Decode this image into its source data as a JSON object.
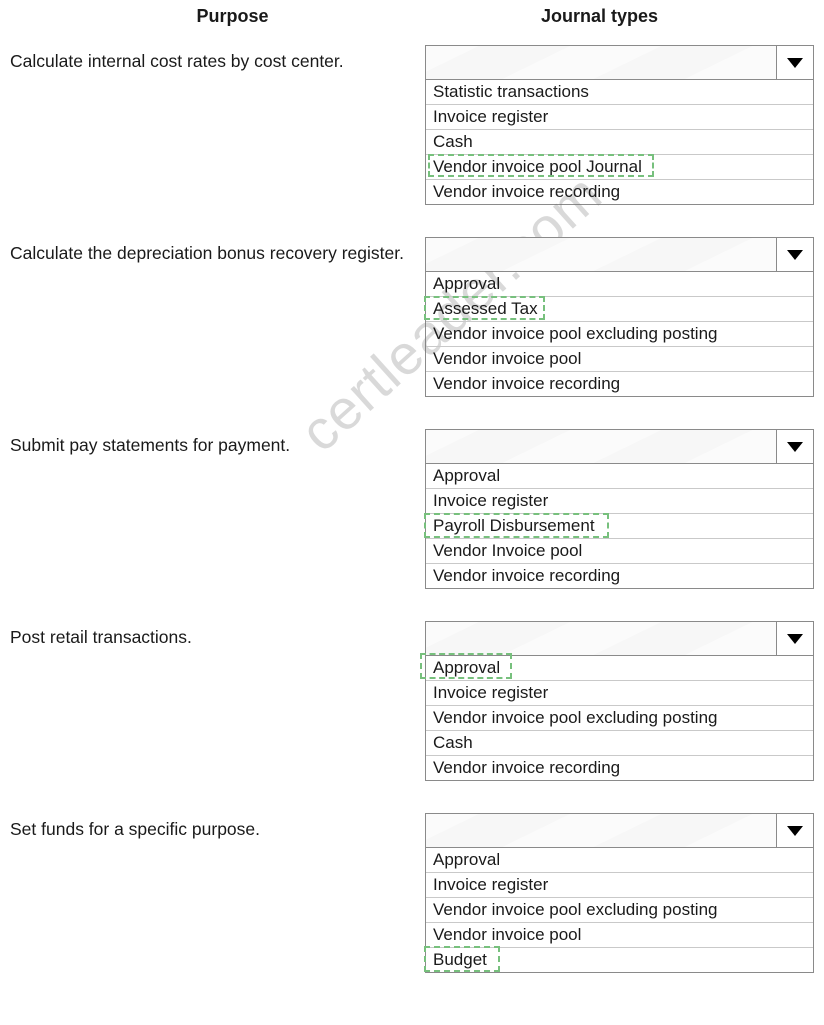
{
  "headers": {
    "left": "Purpose",
    "right": "Journal types"
  },
  "watermark": "certleader.com",
  "rows": [
    {
      "purpose": "Calculate internal cost rates by cost center.",
      "options": [
        "Statistic transactions",
        "Invoice register",
        "Cash",
        "Vendor invoice pool Journal",
        "Vendor invoice recording"
      ],
      "highlightIndex": 3,
      "highlightStyle": "left:2px; top:-1px; width:226px; height:23px;"
    },
    {
      "purpose": "Calculate the depreciation bonus recovery register.",
      "options": [
        "Approval",
        "Assessed Tax",
        "Vendor invoice pool excluding posting",
        "Vendor invoice pool",
        "Vendor invoice recording"
      ],
      "highlightIndex": 1,
      "highlightStyle": "left:-2px; top:-1px; width:121px; height:24px;"
    },
    {
      "purpose": "Submit pay statements for payment.",
      "options": [
        "Approval",
        "Invoice register",
        "Payroll Disbursement",
        "Vendor Invoice pool",
        "Vendor invoice recording"
      ],
      "highlightIndex": 2,
      "highlightStyle": "left:-2px; top:-1px; width:185px; height:25px;"
    },
    {
      "purpose": "Post retail transactions.",
      "options": [
        "Approval",
        "Invoice register",
        "Vendor invoice pool excluding posting",
        "Cash",
        "Vendor invoice recording"
      ],
      "highlightIndex": 0,
      "highlightStyle": "left:-6px; top:-3px; width:92px; height:26px;"
    },
    {
      "purpose": "Set funds for a specific purpose.",
      "options": [
        "Approval",
        "Invoice register",
        "Vendor invoice pool excluding posting",
        "Vendor invoice pool",
        "Budget"
      ],
      "highlightIndex": 4,
      "highlightStyle": "left:-2px; top:-2px; width:76px; height:26px;"
    }
  ]
}
